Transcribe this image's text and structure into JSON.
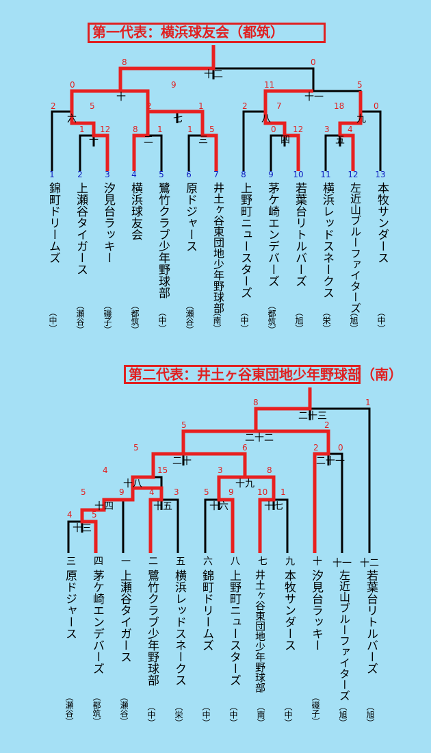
{
  "b1": {
    "title": "第一代表：横浜球友会（都筑）",
    "teams": [
      {
        "num": "1",
        "name": "錦町ドリームズ",
        "region": "（中）"
      },
      {
        "num": "2",
        "name": "上瀬谷タイガース",
        "region": "（瀬谷）"
      },
      {
        "num": "3",
        "name": "汐見台ラッキー",
        "region": "（磯子）"
      },
      {
        "num": "4",
        "name": "横浜球友会",
        "region": "（都筑）"
      },
      {
        "num": "5",
        "name": "鷺竹クラブ少年野球部",
        "region": "（中）"
      },
      {
        "num": "6",
        "name": "原ドジャース",
        "region": "（瀬谷）"
      },
      {
        "num": "7",
        "name": "井土ヶ谷東団地少年野球部",
        "region": "（南）"
      },
      {
        "num": "8",
        "name": "上野町ニュースターズ",
        "region": "（中）"
      },
      {
        "num": "9",
        "name": "茅ケ崎エンデバーズ",
        "region": "（都筑）"
      },
      {
        "num": "10",
        "name": "若葉台リトルバーズ",
        "region": "（旭）"
      },
      {
        "num": "11",
        "name": "横浜レッドスネークス",
        "region": "（栄）"
      },
      {
        "num": "12",
        "name": "左近山ブルーファイターズ",
        "region": "（旭）"
      },
      {
        "num": "13",
        "name": "本牧サンダース",
        "region": "（中）"
      }
    ],
    "matches": {
      "m1": "一",
      "m2": "二",
      "m3": "三",
      "m4": "四",
      "m5": "五",
      "m6": "六",
      "m7": "七",
      "m8": "八",
      "m9": "九",
      "m10": "十",
      "m11": "十一",
      "m12": "十二"
    },
    "scores": {
      "m1a": "1",
      "m1b": "12",
      "m2a": "8",
      "m2b": "1",
      "m3a": "1",
      "m3b": "5",
      "m4a": "0",
      "m4b": "12",
      "m5a": "3",
      "m5b": "4",
      "m6a": "2",
      "m6b": "5",
      "m7a": "2",
      "m7b": "1",
      "m8a": "2",
      "m8b": "7",
      "m9a": "18",
      "m9b": "0",
      "m10a": "0",
      "m10b": "9",
      "m11a": "11",
      "m11b": "5",
      "m12a": "8",
      "m12b": "0"
    }
  },
  "b2": {
    "title": "第二代表：井土ヶ谷東団地少年野球部（南）",
    "slots": [
      {
        "label": "三",
        "name": "原ドジャース",
        "region": "（瀬谷）"
      },
      {
        "label": "四",
        "name": "茅ケ崎エンデバーズ",
        "region": "（都筑）"
      },
      {
        "label": "一",
        "name": "上瀬谷タイガース",
        "region": "（瀬谷）"
      },
      {
        "label": "二",
        "name": "鷺竹クラブ少年野球部",
        "region": "（中）"
      },
      {
        "label": "五",
        "name": "横浜レッドスネークス",
        "region": "（栄）"
      },
      {
        "label": "六",
        "name": "錦町ドリームズ",
        "region": "（中）"
      },
      {
        "label": "八",
        "name": "上野町ニュースターズ",
        "region": "（中）"
      },
      {
        "label": "七",
        "name": "井土ヶ谷東団地少年野球部",
        "region": "（南）"
      },
      {
        "label": "九",
        "name": "本牧サンダース",
        "region": "（中）"
      },
      {
        "label": "十",
        "name": "汐見台ラッキー",
        "region": "（磯子）"
      },
      {
        "label": "十一",
        "name": "左近山ブルーファイターズ",
        "region": "（旭）"
      },
      {
        "label": "十二",
        "name": "若葉台リトルバーズ",
        "region": "（旭）"
      }
    ],
    "matches": {
      "m13": "十三",
      "m14": "十四",
      "m15": "十五",
      "m16": "十六",
      "m17": "十七",
      "m18": "十八",
      "m19": "十九",
      "m20": "二十",
      "m21": "二十一",
      "m22": "二十二",
      "m23": "二十三"
    },
    "scores": {
      "m13a": "4",
      "m13b": "5",
      "m14a": "5",
      "m14b": "9",
      "m15a": "4",
      "m15b": "3",
      "m16a": "5",
      "m16b": "9",
      "m17a": "10",
      "m17b": "1",
      "m18a": "4",
      "m18b": "15",
      "m19a": "3",
      "m19b": "8",
      "m20a": "5",
      "m20b": "6",
      "m21a": "2",
      "m21b": "0",
      "m22a": "5",
      "m22b": "2",
      "m23a": "8",
      "m23b": "1"
    }
  }
}
